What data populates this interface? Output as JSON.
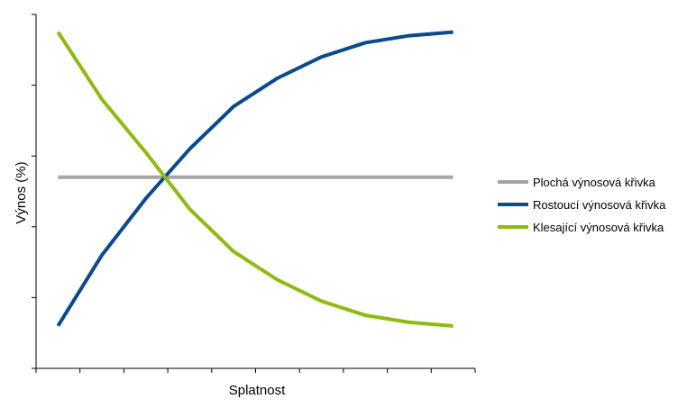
{
  "chart_data": {
    "type": "line",
    "title": "",
    "xlabel": "Splatnost",
    "ylabel": "Výnos (%)",
    "x": [
      1,
      2,
      3,
      4,
      5,
      6,
      7,
      8,
      9,
      10
    ],
    "xlim": [
      0,
      10
    ],
    "ylim": [
      0,
      5
    ],
    "x_tick_count": 10,
    "y_tick_count": 5,
    "grid": false,
    "legend_position": "right",
    "series": [
      {
        "name": "Plochá výnosová křivka",
        "color": "#a6a6a6",
        "values": [
          2.7,
          2.7,
          2.7,
          2.7,
          2.7,
          2.7,
          2.7,
          2.7,
          2.7,
          2.7
        ]
      },
      {
        "name": "Rostoucí výnosová křivka",
        "color": "#0b4a8b",
        "values": [
          0.6,
          1.6,
          2.4,
          3.1,
          3.7,
          4.1,
          4.4,
          4.6,
          4.7,
          4.75
        ]
      },
      {
        "name": "Klesající výnosová křivka",
        "color": "#8dbb0f",
        "values": [
          4.75,
          3.8,
          3.05,
          2.25,
          1.65,
          1.25,
          0.95,
          0.75,
          0.65,
          0.6
        ]
      }
    ]
  }
}
